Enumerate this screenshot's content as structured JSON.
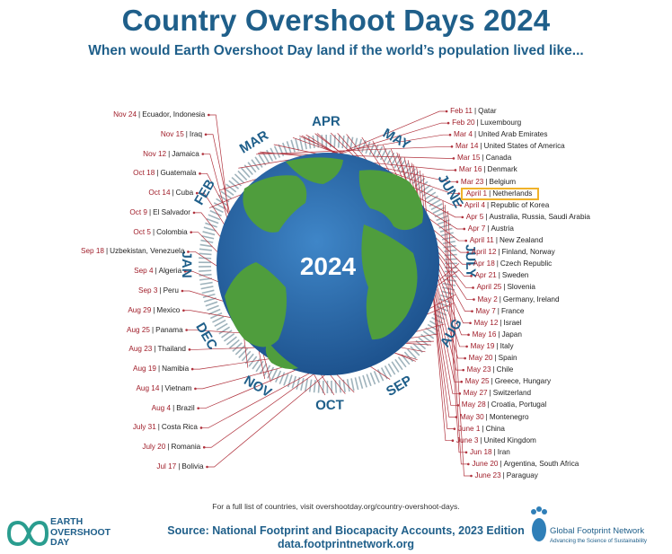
{
  "header": {
    "title": "Country Overshoot Days 2024",
    "subtitle": "When would Earth Overshoot Day land if the world’s population lived like..."
  },
  "globe": {
    "year": "2024"
  },
  "months": [
    "JAN",
    "FEB",
    "MAR",
    "APR",
    "MAY",
    "JUNE",
    "JULY",
    "AUG",
    "SEP",
    "OCT",
    "NOV",
    "DEC"
  ],
  "countries": [
    {
      "date": "Feb 11",
      "name": "Qatar"
    },
    {
      "date": "Feb 20",
      "name": "Luxembourg"
    },
    {
      "date": "Mar 4",
      "name": "United Arab Emirates"
    },
    {
      "date": "Mar 14",
      "name": "United States of America"
    },
    {
      "date": "Mar 15",
      "name": "Canada"
    },
    {
      "date": "Mar 16",
      "name": "Denmark"
    },
    {
      "date": "Mar 23",
      "name": "Belgium"
    },
    {
      "date": "April 1",
      "name": "Netherlands"
    },
    {
      "date": "April 4",
      "name": "Republic of Korea"
    },
    {
      "date": "Apr 5",
      "name": "Australia, Russia, Saudi Arabia"
    },
    {
      "date": "Apr 7",
      "name": "Austria"
    },
    {
      "date": "April 11",
      "name": "New Zealand"
    },
    {
      "date": "April 12",
      "name": "Finland, Norway"
    },
    {
      "date": "Apr 18",
      "name": "Czech Republic"
    },
    {
      "date": "Apr 21",
      "name": "Sweden"
    },
    {
      "date": "April 25",
      "name": "Slovenia"
    },
    {
      "date": "May 2",
      "name": "Germany, Ireland"
    },
    {
      "date": "May 7",
      "name": "France"
    },
    {
      "date": "May 12",
      "name": "Israel"
    },
    {
      "date": "May 16",
      "name": "Japan"
    },
    {
      "date": "May 19",
      "name": "Italy"
    },
    {
      "date": "May 20",
      "name": "Spain"
    },
    {
      "date": "May 23",
      "name": "Chile"
    },
    {
      "date": "May 25",
      "name": "Greece, Hungary"
    },
    {
      "date": "May 27",
      "name": "Switzerland"
    },
    {
      "date": "May 28",
      "name": "Croatia, Portugal"
    },
    {
      "date": "May 30",
      "name": "Montenegro"
    },
    {
      "date": "June 1",
      "name": "China"
    },
    {
      "date": "June 3",
      "name": "United Kingdom"
    },
    {
      "date": "Jun 18",
      "name": "Iran"
    },
    {
      "date": "June 20",
      "name": "Argentina, South Africa"
    },
    {
      "date": "June 23",
      "name": "Paraguay"
    },
    {
      "date": "Jul 17",
      "name": "Bolivia"
    },
    {
      "date": "July 20",
      "name": "Romania"
    },
    {
      "date": "July 31",
      "name": "Costa Rica"
    },
    {
      "date": "Aug 4",
      "name": "Brazil"
    },
    {
      "date": "Aug 14",
      "name": "Vietnam"
    },
    {
      "date": "Aug 19",
      "name": "Namibia"
    },
    {
      "date": "Aug 23",
      "name": "Thailand"
    },
    {
      "date": "Aug 25",
      "name": "Panama"
    },
    {
      "date": "Aug 29",
      "name": "Mexico"
    },
    {
      "date": "Sep 3",
      "name": "Peru"
    },
    {
      "date": "Sep 4",
      "name": "Algeria"
    },
    {
      "date": "Sep 18",
      "name": "Uzbekistan, Venezuela"
    },
    {
      "date": "Oct 5",
      "name": "Colombia"
    },
    {
      "date": "Oct 9",
      "name": "El Salvador"
    },
    {
      "date": "Oct 14",
      "name": "Cuba"
    },
    {
      "date": "Oct 18",
      "name": "Guatemala"
    },
    {
      "date": "Nov 12",
      "name": "Jamaica"
    },
    {
      "date": "Nov 15",
      "name": "Iraq"
    },
    {
      "date": "Nov 24",
      "name": "Ecuador, Indonesia"
    }
  ],
  "highlight": "Netherlands",
  "footer": {
    "full_list": "For a full list of countries, visit overshootday.org/country-overshoot-days.",
    "source_line1": "Source: National Footprint and Biocapacity Accounts, 2023 Edition",
    "source_line2": "data.footprintnetwork.org"
  },
  "logos": {
    "eod_line1": "EARTH",
    "eod_line2": "OVERSHOOT",
    "eod_line3": "DAY",
    "gfn_name": "Global Footprint Network",
    "gfn_tagline": "Advancing the Science of Sustainability"
  },
  "colors": {
    "title": "#1f5f8a",
    "date_red": "#a01e2a",
    "ocean": "#2a6db0",
    "land": "#4a9a3c",
    "ring": "#9fb3bc",
    "highlight_box": "#f0b22a"
  }
}
